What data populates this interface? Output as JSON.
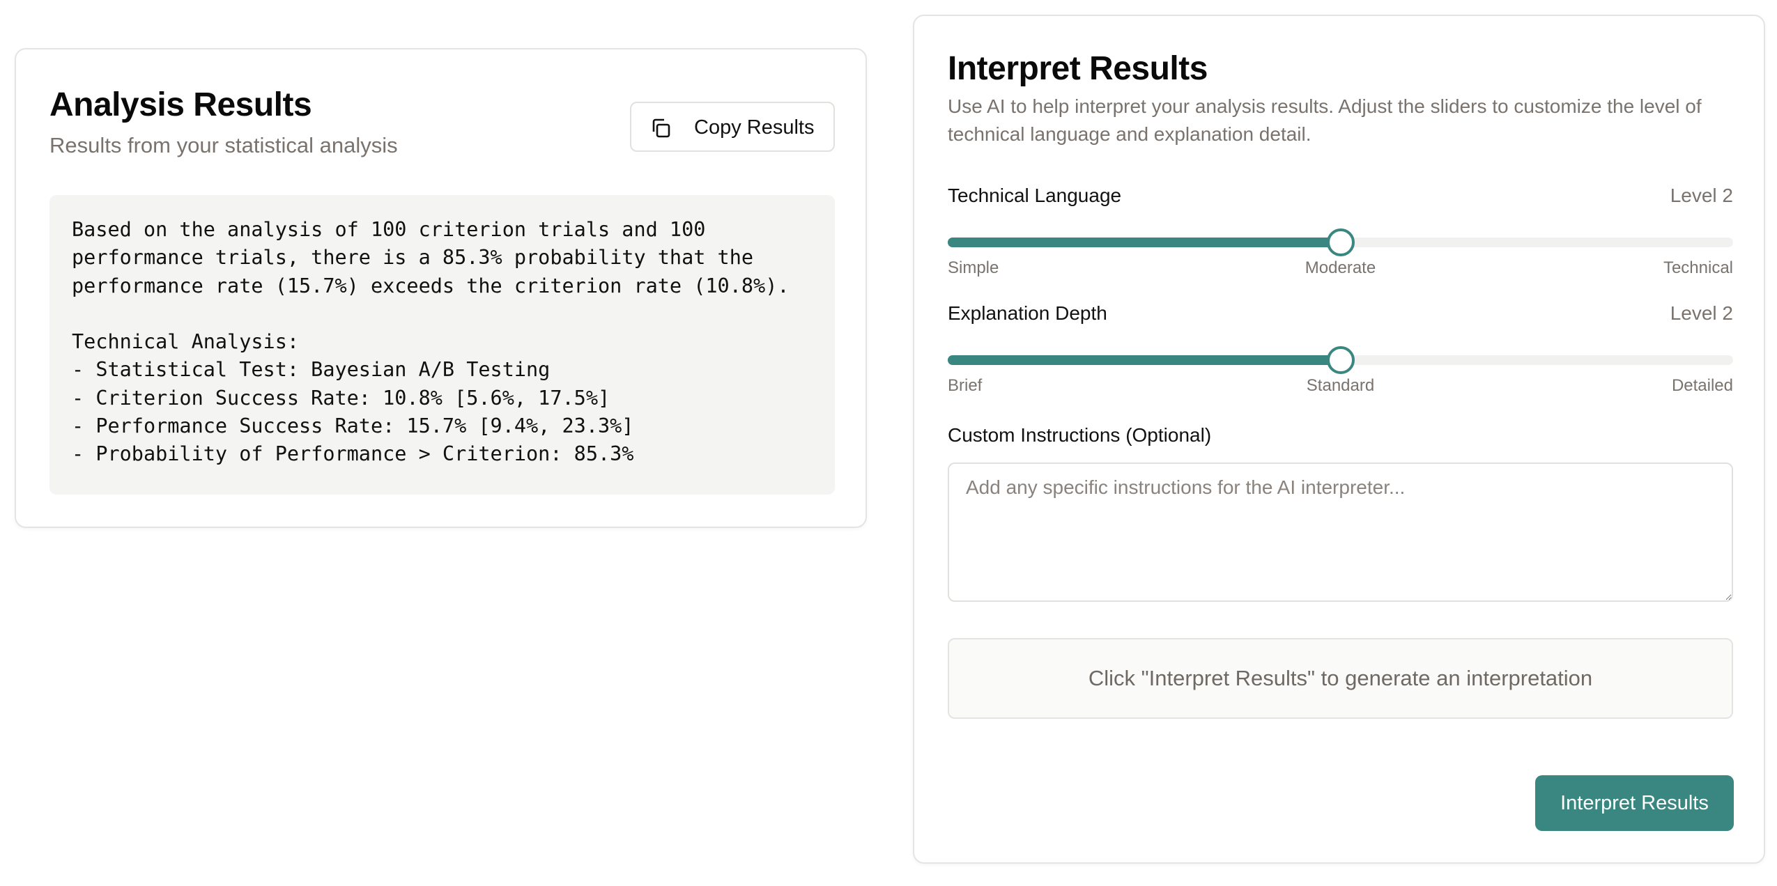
{
  "analysis": {
    "title": "Analysis Results",
    "subtitle": "Results from your statistical analysis",
    "copy_button_label": "Copy Results",
    "copy_icon": "copy-icon",
    "results_text": "Based on the analysis of 100 criterion trials and 100\nperformance trials, there is a 85.3% probability that the\nperformance rate (15.7%) exceeds the criterion rate (10.8%).\n\nTechnical Analysis:\n- Statistical Test: Bayesian A/B Testing\n- Criterion Success Rate: 10.8% [5.6%, 17.5%]\n- Performance Success Rate: 15.7% [9.4%, 23.3%]\n- Probability of Performance > Criterion: 85.3%"
  },
  "interpret": {
    "title": "Interpret Results",
    "description": "Use AI to help interpret your analysis results. Adjust the sliders to customize the level of technical language and explanation detail.",
    "sliders": [
      {
        "label": "Technical Language",
        "level_text": "Level 2",
        "value": 2,
        "min": 1,
        "max": 3,
        "ticks": [
          "Simple",
          "Moderate",
          "Technical"
        ]
      },
      {
        "label": "Explanation Depth",
        "level_text": "Level 2",
        "value": 2,
        "min": 1,
        "max": 3,
        "ticks": [
          "Brief",
          "Standard",
          "Detailed"
        ]
      }
    ],
    "custom_label": "Custom Instructions (Optional)",
    "custom_value": "",
    "custom_placeholder": "Add any specific instructions for the AI interpreter...",
    "output_placeholder": "Click \"Interpret Results\" to generate an interpretation",
    "button_label": "Interpret Results"
  },
  "colors": {
    "accent": "#3a8680",
    "muted_text": "#7a736d",
    "code_bg": "#f4f4f3"
  }
}
